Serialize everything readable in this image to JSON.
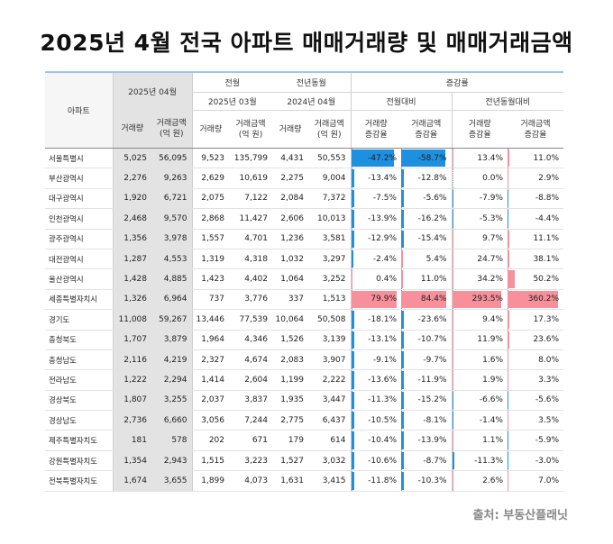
{
  "title": "2025년 4월 전국 아파트 매매거래량 및 매매거래금액",
  "source": "출처: 부동산플래닛",
  "header": {
    "apartment": "아파트",
    "current_period": "2025년 04월",
    "prev_month": "전월",
    "prev_year": "전년동월",
    "change_rate": "증감률",
    "prev_month_period": "2025년 03월",
    "prev_year_period": "2024년 04월",
    "vs_prev_month": "전월대비",
    "vs_prev_year": "전년동월대비",
    "col_volume": "거래량",
    "col_amount_l1": "거래금액",
    "col_amount_l2": "(억 원)",
    "col_vol_rate_l1": "거래량",
    "col_vol_rate_l2": "증감율",
    "col_amt_rate_l1": "거래금액",
    "col_amt_rate_l2": "증감율"
  },
  "colors": {
    "negative": "#1e90e0",
    "positive": "#f7909a"
  },
  "rows": [
    {
      "region": "서울특별시",
      "v": "5,025",
      "a": "56,095",
      "pv": "9,523",
      "pa": "135,799",
      "yv": "4,431",
      "ya": "50,553",
      "mv": "-47.2%",
      "ma": "-58.7%",
      "yvr": "13.4%",
      "yar": "11.0%",
      "n": [
        -47.2,
        -58.7,
        13.4,
        11.0
      ]
    },
    {
      "region": "부산광역시",
      "v": "2,276",
      "a": "9,263",
      "pv": "2,629",
      "pa": "10,619",
      "yv": "2,275",
      "ya": "9,004",
      "mv": "-13.4%",
      "ma": "-12.8%",
      "yvr": "0.0%",
      "yar": "2.9%",
      "n": [
        -13.4,
        -12.8,
        0.0,
        2.9
      ]
    },
    {
      "region": "대구광역시",
      "v": "1,920",
      "a": "6,721",
      "pv": "2,075",
      "pa": "7,122",
      "yv": "2,084",
      "ya": "7,372",
      "mv": "-7.5%",
      "ma": "-5.6%",
      "yvr": "-7.9%",
      "yar": "-8.8%",
      "n": [
        -7.5,
        -5.6,
        -7.9,
        -8.8
      ]
    },
    {
      "region": "인천광역시",
      "v": "2,468",
      "a": "9,570",
      "pv": "2,868",
      "pa": "11,427",
      "yv": "2,606",
      "ya": "10,013",
      "mv": "-13.9%",
      "ma": "-16.2%",
      "yvr": "-5.3%",
      "yar": "-4.4%",
      "n": [
        -13.9,
        -16.2,
        -5.3,
        -4.4
      ]
    },
    {
      "region": "광주광역시",
      "v": "1,356",
      "a": "3,978",
      "pv": "1,557",
      "pa": "4,701",
      "yv": "1,236",
      "ya": "3,581",
      "mv": "-12.9%",
      "ma": "-15.4%",
      "yvr": "9.7%",
      "yar": "11.1%",
      "n": [
        -12.9,
        -15.4,
        9.7,
        11.1
      ]
    },
    {
      "region": "대전광역시",
      "v": "1,287",
      "a": "4,553",
      "pv": "1,319",
      "pa": "4,318",
      "yv": "1,032",
      "ya": "3,297",
      "mv": "-2.4%",
      "ma": "5.4%",
      "yvr": "24.7%",
      "yar": "38.1%",
      "n": [
        -2.4,
        5.4,
        24.7,
        38.1
      ]
    },
    {
      "region": "울산광역시",
      "v": "1,428",
      "a": "4,885",
      "pv": "1,423",
      "pa": "4,402",
      "yv": "1,064",
      "ya": "3,252",
      "mv": "0.4%",
      "ma": "11.0%",
      "yvr": "34.2%",
      "yar": "50.2%",
      "n": [
        0.4,
        11.0,
        34.2,
        50.2
      ]
    },
    {
      "region": "세종특별자치시",
      "v": "1,326",
      "a": "6,964",
      "pv": "737",
      "pa": "3,776",
      "yv": "337",
      "ya": "1,513",
      "mv": "79.9%",
      "ma": "84.4%",
      "yvr": "293.5%",
      "yar": "360.2%",
      "n": [
        79.9,
        84.4,
        293.5,
        360.2
      ]
    },
    {
      "region": "경기도",
      "v": "11,008",
      "a": "59,267",
      "pv": "13,446",
      "pa": "77,539",
      "yv": "10,064",
      "ya": "50,508",
      "mv": "-18.1%",
      "ma": "-23.6%",
      "yvr": "9.4%",
      "yar": "17.3%",
      "n": [
        -18.1,
        -23.6,
        9.4,
        17.3
      ]
    },
    {
      "region": "충청북도",
      "v": "1,707",
      "a": "3,879",
      "pv": "1,964",
      "pa": "4,346",
      "yv": "1,526",
      "ya": "3,139",
      "mv": "-13.1%",
      "ma": "-10.7%",
      "yvr": "11.9%",
      "yar": "23.6%",
      "n": [
        -13.1,
        -10.7,
        11.9,
        23.6
      ]
    },
    {
      "region": "충청남도",
      "v": "2,116",
      "a": "4,219",
      "pv": "2,327",
      "pa": "4,674",
      "yv": "2,083",
      "ya": "3,907",
      "mv": "-9.1%",
      "ma": "-9.7%",
      "yvr": "1.6%",
      "yar": "8.0%",
      "n": [
        -9.1,
        -9.7,
        1.6,
        8.0
      ]
    },
    {
      "region": "전라남도",
      "v": "1,222",
      "a": "2,294",
      "pv": "1,414",
      "pa": "2,604",
      "yv": "1,199",
      "ya": "2,222",
      "mv": "-13.6%",
      "ma": "-11.9%",
      "yvr": "1.9%",
      "yar": "3.3%",
      "n": [
        -13.6,
        -11.9,
        1.9,
        3.3
      ]
    },
    {
      "region": "경상북도",
      "v": "1,807",
      "a": "3,255",
      "pv": "2,037",
      "pa": "3,837",
      "yv": "1,935",
      "ya": "3,447",
      "mv": "-11.3%",
      "ma": "-15.2%",
      "yvr": "-6.6%",
      "yar": "-5.6%",
      "n": [
        -11.3,
        -15.2,
        -6.6,
        -5.6
      ]
    },
    {
      "region": "경상남도",
      "v": "2,736",
      "a": "6,660",
      "pv": "3,056",
      "pa": "7,244",
      "yv": "2,775",
      "ya": "6,437",
      "mv": "-10.5%",
      "ma": "-8.1%",
      "yvr": "-1.4%",
      "yar": "3.5%",
      "n": [
        -10.5,
        -8.1,
        -1.4,
        3.5
      ]
    },
    {
      "region": "제주특별자치도",
      "v": "181",
      "a": "578",
      "pv": "202",
      "pa": "671",
      "yv": "179",
      "ya": "614",
      "mv": "-10.4%",
      "ma": "-13.9%",
      "yvr": "1.1%",
      "yar": "-5.9%",
      "n": [
        -10.4,
        -13.9,
        1.1,
        -5.9
      ]
    },
    {
      "region": "강원특별자치도",
      "v": "1,354",
      "a": "2,943",
      "pv": "1,515",
      "pa": "3,223",
      "yv": "1,527",
      "ya": "3,032",
      "mv": "-10.6%",
      "ma": "-8.7%",
      "yvr": "-11.3%",
      "yar": "-3.0%",
      "n": [
        -10.6,
        -8.7,
        -11.3,
        -3.0
      ]
    },
    {
      "region": "전북특별자치도",
      "v": "1,674",
      "a": "3,655",
      "pv": "1,899",
      "pa": "4,073",
      "yv": "1,631",
      "ya": "3,415",
      "mv": "-11.8%",
      "ma": "-10.3%",
      "yvr": "2.6%",
      "yar": "7.0%",
      "n": [
        -11.8,
        -10.3,
        2.6,
        7.0
      ]
    }
  ]
}
